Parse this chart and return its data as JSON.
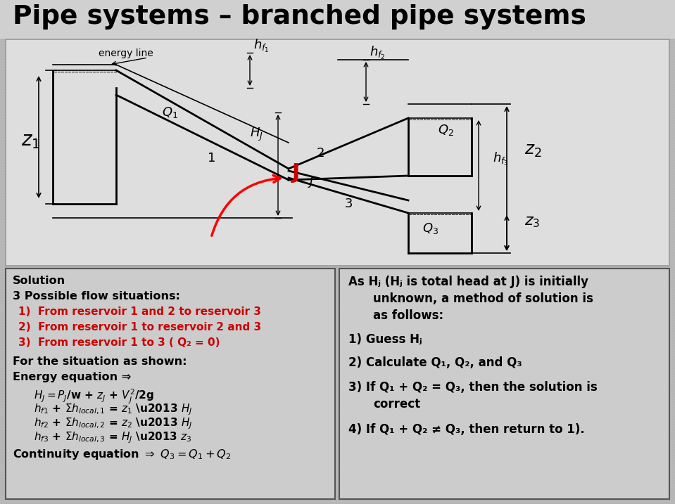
{
  "title": "Pipe systems – branched pipe systems",
  "bg_color": "#b8b8b8",
  "diagram_bg": "#d8d8d8",
  "panel_bg": "#c8c8c8",
  "title_color": "#000000",
  "left_panel": {
    "solution_title": "Solution",
    "situations_title": "3 Possible flow situations:",
    "items": [
      "1)  From reservoir 1 and 2 to reservoir 3",
      "2)  From reservoir 1 to reservoir 2 and 3",
      "3)  From reservoir 1 to 3 ( Q₂ = 0)"
    ],
    "items_color": [
      "#cc0000",
      "#cc0000",
      "#cc0000"
    ],
    "for_situation": "For the situation as shown:",
    "energy_eq": "Energy equation ⇒"
  },
  "right_panel": {
    "line1": "As Hⱼ (Hⱼ is total head at J) is initially",
    "line2": "unknown, a method of solution is",
    "line3": "as follows:",
    "item1": "1) Guess Hⱼ",
    "item2": "2) Calculate Q₁, Q₂, and Q₃",
    "item3": "3) If Q₁ + Q₂ = Q₃, then the solution is",
    "item3b": "correct",
    "item4": "4) If Q₁ + Q₂ ≠ Q₃, then return to 1)."
  }
}
